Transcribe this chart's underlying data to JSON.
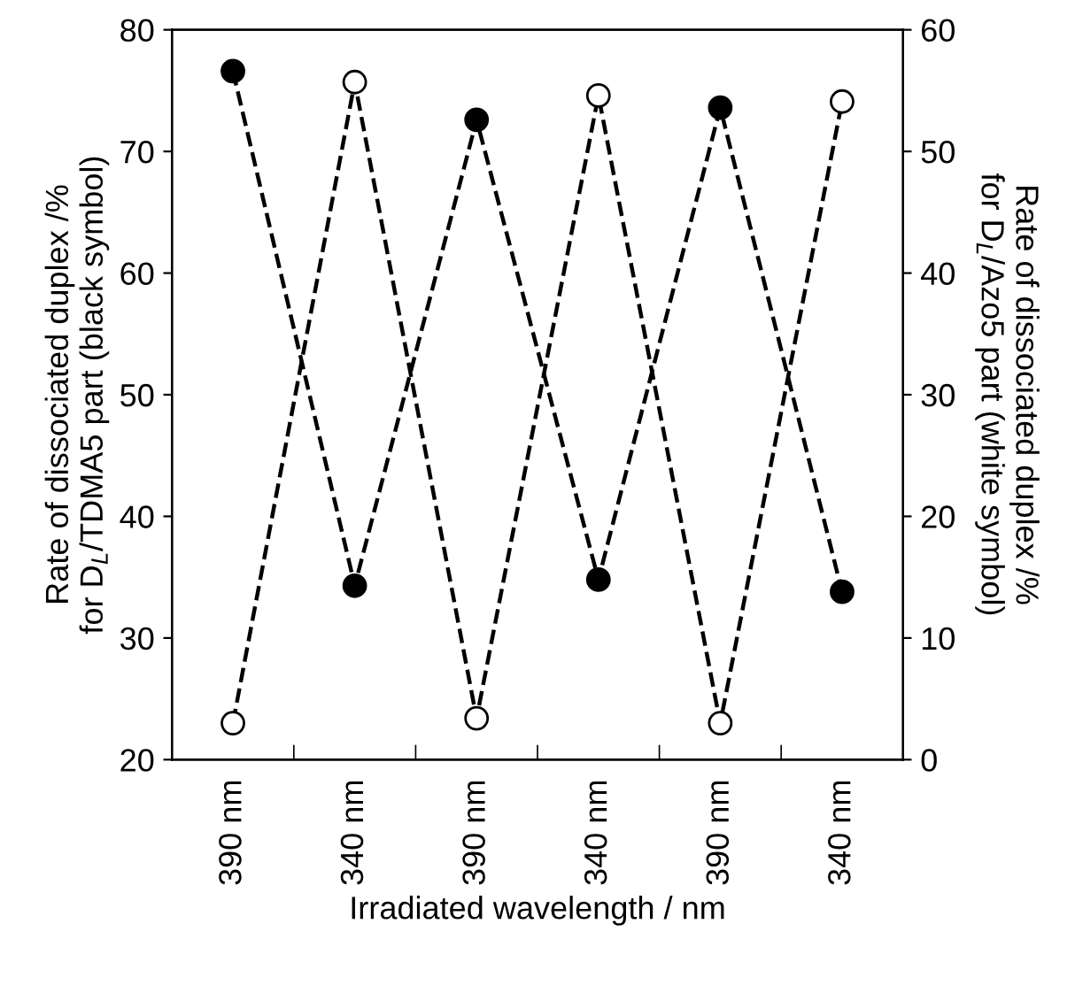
{
  "chart_data": {
    "type": "line",
    "xlabel": "Irradiated wavelength / nm",
    "ylabel": "Rate of dissociated duplex /%\nfor D$_{L}$/TDMA5 part (black symbol)",
    "y2label": "Rate of dissociated duplex /%\nfor D$_{L}$/Azo5 part (white symbol)",
    "categories": [
      "390 nm",
      "340 nm",
      "390 nm",
      "340 nm",
      "390 nm",
      "340 nm"
    ],
    "series": [
      {
        "color": "#000000",
        "values": [
          76.6,
          34.3,
          72.6,
          34.8,
          73.6,
          33.8
        ]
      },
      {
        "color": "#ffffff",
        "axis": "y2",
        "values": [
          3.0,
          55.7,
          3.4,
          54.6,
          3.0,
          54.1
        ]
      }
    ],
    "ylim": [
      20,
      80
    ],
    "yticks": [
      20,
      30,
      40,
      50,
      60,
      70,
      80
    ],
    "y2lim": [
      0,
      60
    ],
    "y2ticks": [
      0,
      10,
      20,
      30,
      40,
      50,
      60
    ],
    "marker": "circle",
    "line_style": "dashed",
    "grid": false,
    "legend": false
  }
}
